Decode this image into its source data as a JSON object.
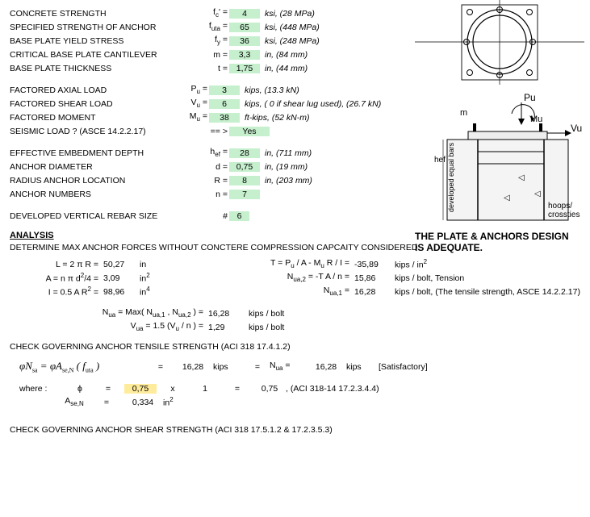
{
  "inputs": {
    "concrete_strength": {
      "label": "CONCRETE STRENGTH",
      "sym": "f<span class='sub'>c</span>' =",
      "val": "4",
      "unit": "ksi, (28 MPa)"
    },
    "anchor_strength": {
      "label": "SPECIFIED STRENGTH OF ANCHOR",
      "sym": "f<span class='sub'>uta</span> =",
      "val": "65",
      "unit": "ksi, (448 MPa)"
    },
    "base_plate_yield": {
      "label": "BASE PLATE YIELD STRESS",
      "sym": "f<span class='sub'>y</span> =",
      "val": "36",
      "unit": "ksi, (248 MPa)"
    },
    "cantilever": {
      "label": "CRITICAL BASE PLATE CANTILEVER",
      "sym": "m =",
      "val": "3,3",
      "unit": "in, (84 mm)"
    },
    "thickness": {
      "label": "BASE PLATE THICKNESS",
      "sym": "t =",
      "val": "1,75",
      "unit": "in, (44 mm)"
    },
    "axial": {
      "label": "FACTORED AXIAL LOAD",
      "sym": "P<span class='sub'>u</span> =",
      "val": "3",
      "unit": "kips, (13.3 kN)"
    },
    "shear": {
      "label": "FACTORED SHEAR LOAD",
      "sym": "V<span class='sub'>u</span> =",
      "val": "6",
      "unit": "kips, ( 0 if shear lug used), (26.7 kN)"
    },
    "moment": {
      "label": "FACTORED MOMENT",
      "sym": "M<span class='sub'>u</span> =",
      "val": "38",
      "unit": "ft-kips, (52 kN-m)"
    },
    "seismic": {
      "label": "SEISMIC LOAD ? (ASCE 14.2.2.17)",
      "sym": "== >",
      "val": "Yes",
      "unit": ""
    },
    "embed": {
      "label": "EFFECTIVE EMBEDMENT DEPTH",
      "sym": "h<span class='sub'>ef</span> =",
      "val": "28",
      "unit": "in, (711 mm)"
    },
    "dia": {
      "label": "ANCHOR DIAMETER",
      "sym": "d =",
      "val": "0,75",
      "unit": "in, (19 mm)"
    },
    "radius": {
      "label": "RADIUS ANCHOR LOCATION",
      "sym": "R =",
      "val": "8",
      "unit": "in, (203 mm)"
    },
    "nanchor": {
      "label": "ANCHOR NUMBERS",
      "sym": "n =",
      "val": "7",
      "unit": ""
    },
    "rebar": {
      "label": "DEVELOPED VERTICAL REBAR SIZE",
      "sym": "#",
      "val": "6",
      "unit": ""
    }
  },
  "status": "THE PLATE & ANCHORS DESIGN IS ADEQUATE.",
  "analysis": {
    "title": "ANALYSIS",
    "subtitle": "DETERMINE MAX ANCHOR FORCES WITHOUT CONCTERE COMPRESSION CAPCAITY CONSIDERED",
    "L": {
      "expr": "L =  2 π R =",
      "val": "50,27",
      "unit": "in"
    },
    "A": {
      "expr": "A =  n π d<span class='sup'>2</span>/4 =",
      "val": "3,09",
      "unit": "in<span class='sup'>2</span>"
    },
    "I": {
      "expr": "I =  0.5 A R<span class='sup'>2</span> =",
      "val": "98,96",
      "unit": "in<span class='sup'>4</span>"
    },
    "T": {
      "expr": "T =  P<span class='sub'>u</span> / A - M<span class='sub'>u</span> R / I =",
      "val": "-35,89",
      "unit": "kips / in<span class='sup'>2</span>"
    },
    "Nua2": {
      "expr": "N<span class='sub'>ua,2</span> =  -T A / n =",
      "val": "15,86",
      "unit": "kips / bolt, Tension"
    },
    "Nua1": {
      "expr": "N<span class='sub'>ua,1</span> =",
      "val": "16,28",
      "unit": "kips / bolt, (The tensile strength, ASCE 14.2.2.17)"
    },
    "Nua": {
      "expr": "N<span class='sub'>ua</span> = Max( N<span class='sub'>ua,1</span> , N<span class='sub'>ua,2</span> ) =",
      "val": "16,28",
      "unit": "kips / bolt"
    },
    "Vua": {
      "expr": "V<span class='sub'>ua</span> = 1.5 (V<span class='sub'>u</span> / n ) =",
      "val": "1,29",
      "unit": "kips / bolt"
    }
  },
  "tensile": {
    "heading": "CHECK GOVERNING ANCHOR TENSILE STRENGTH (ACI 318 17.4.1.2)",
    "phiNsa": "16,28",
    "phiNsa_unit": "kips",
    "Nua": "16,28",
    "Nua_unit": "kips",
    "check": "[Satisfactory]",
    "phi": "0,75",
    "mult": "1",
    "phi_res": "0,75",
    "phi_ref": ", (ACI 318-14 17.2.3.4.4)",
    "AseN": "0,334",
    "AseN_unit": "in<span class='sup'>2</span>"
  },
  "shear_check": {
    "heading": "CHECK GOVERNING ANCHOR SHEAR STRENGTH (ACI 318 17.5.1.2 & 17.2.3.5.3)"
  },
  "diagram": {
    "Pu": "Pu",
    "Mu": "Mu",
    "Vu": "Vu",
    "m": "m",
    "hef": "hef",
    "dev": "developed equal bars",
    "hoops": "hoops/ crossties"
  },
  "colors": {
    "green": "#c6efce",
    "yellow": "#ffeb9c"
  }
}
